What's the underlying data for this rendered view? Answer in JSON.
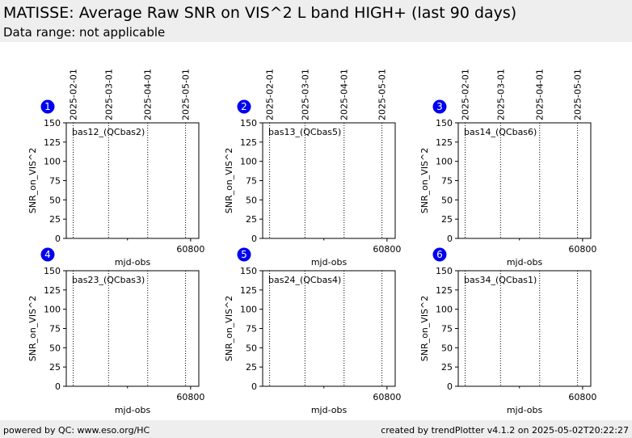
{
  "header": {
    "title": "MATISSE: Average Raw SNR on VIS^2 L band HIGH+ (last 90 days)",
    "subtitle": "Data range: not applicable"
  },
  "footer": {
    "left": "powered by QC: www.eso.org/HC",
    "right": "created by trendPlotter v4.1.2 on 2025-05-02T20:22:27"
  },
  "colors": {
    "badge": "#0000ee",
    "header_bg": "#eeeeee",
    "axis": "#000000"
  },
  "chart_data": [
    {
      "type": "scatter",
      "badge": "1",
      "label": "bas12_(QCbas2)",
      "xlabel": "mjd-obs",
      "ylabel": "SNR_on_VIS^2",
      "xlim": [
        60701.5,
        60806.5
      ],
      "ylim": [
        0,
        150
      ],
      "yticks": [
        0,
        25,
        50,
        75,
        100,
        125,
        150
      ],
      "xticks": [
        60800
      ],
      "xticks_minor": [
        60750
      ],
      "date_lines": [
        {
          "x": 60707,
          "label": "2025-02-01"
        },
        {
          "x": 60735,
          "label": "2025-03-01"
        },
        {
          "x": 60766,
          "label": "2025-04-01"
        },
        {
          "x": 60796,
          "label": "2025-05-01"
        }
      ],
      "series": [],
      "grid": false
    },
    {
      "type": "scatter",
      "badge": "2",
      "label": "bas13_(QCbas5)",
      "xlabel": "mjd-obs",
      "ylabel": "SNR_on_VIS^2",
      "xlim": [
        60701.5,
        60806.5
      ],
      "ylim": [
        0,
        150
      ],
      "yticks": [
        0,
        25,
        50,
        75,
        100,
        125,
        150
      ],
      "xticks": [
        60800
      ],
      "xticks_minor": [
        60750
      ],
      "date_lines": [
        {
          "x": 60707,
          "label": "2025-02-01"
        },
        {
          "x": 60735,
          "label": "2025-03-01"
        },
        {
          "x": 60766,
          "label": "2025-04-01"
        },
        {
          "x": 60796,
          "label": "2025-05-01"
        }
      ],
      "series": [],
      "grid": false
    },
    {
      "type": "scatter",
      "badge": "3",
      "label": "bas14_(QCbas6)",
      "xlabel": "mjd-obs",
      "ylabel": "SNR_on_VIS^2",
      "xlim": [
        60701.5,
        60806.5
      ],
      "ylim": [
        0,
        150
      ],
      "yticks": [
        0,
        25,
        50,
        75,
        100,
        125,
        150
      ],
      "xticks": [
        60800
      ],
      "xticks_minor": [
        60750
      ],
      "date_lines": [
        {
          "x": 60707,
          "label": "2025-02-01"
        },
        {
          "x": 60735,
          "label": "2025-03-01"
        },
        {
          "x": 60766,
          "label": "2025-04-01"
        },
        {
          "x": 60796,
          "label": "2025-05-01"
        }
      ],
      "series": [],
      "grid": false
    },
    {
      "type": "scatter",
      "badge": "4",
      "label": "bas23_(QCbas3)",
      "xlabel": "mjd-obs",
      "ylabel": "SNR_on_VIS^2",
      "xlim": [
        60701.5,
        60806.5
      ],
      "ylim": [
        0,
        150
      ],
      "yticks": [
        0,
        25,
        50,
        75,
        100,
        125,
        150
      ],
      "xticks": [
        60800
      ],
      "xticks_minor": [
        60750
      ],
      "date_lines": [
        {
          "x": 60707,
          "label": ""
        },
        {
          "x": 60735,
          "label": ""
        },
        {
          "x": 60766,
          "label": ""
        },
        {
          "x": 60796,
          "label": ""
        }
      ],
      "series": [],
      "grid": false
    },
    {
      "type": "scatter",
      "badge": "5",
      "label": "bas24_(QCbas4)",
      "xlabel": "mjd-obs",
      "ylabel": "SNR_on_VIS^2",
      "xlim": [
        60701.5,
        60806.5
      ],
      "ylim": [
        0,
        150
      ],
      "yticks": [
        0,
        25,
        50,
        75,
        100,
        125,
        150
      ],
      "xticks": [
        60800
      ],
      "xticks_minor": [
        60750
      ],
      "date_lines": [
        {
          "x": 60707,
          "label": ""
        },
        {
          "x": 60735,
          "label": ""
        },
        {
          "x": 60766,
          "label": ""
        },
        {
          "x": 60796,
          "label": ""
        }
      ],
      "series": [],
      "grid": false
    },
    {
      "type": "scatter",
      "badge": "6",
      "label": "bas34_(QCbas1)",
      "xlabel": "mjd-obs",
      "ylabel": "SNR_on_VIS^2",
      "xlim": [
        60701.5,
        60806.5
      ],
      "ylim": [
        0,
        150
      ],
      "yticks": [
        0,
        25,
        50,
        75,
        100,
        125,
        150
      ],
      "xticks": [
        60800
      ],
      "xticks_minor": [
        60750
      ],
      "date_lines": [
        {
          "x": 60707,
          "label": ""
        },
        {
          "x": 60735,
          "label": ""
        },
        {
          "x": 60766,
          "label": ""
        },
        {
          "x": 60796,
          "label": ""
        }
      ],
      "series": [],
      "grid": false
    }
  ]
}
